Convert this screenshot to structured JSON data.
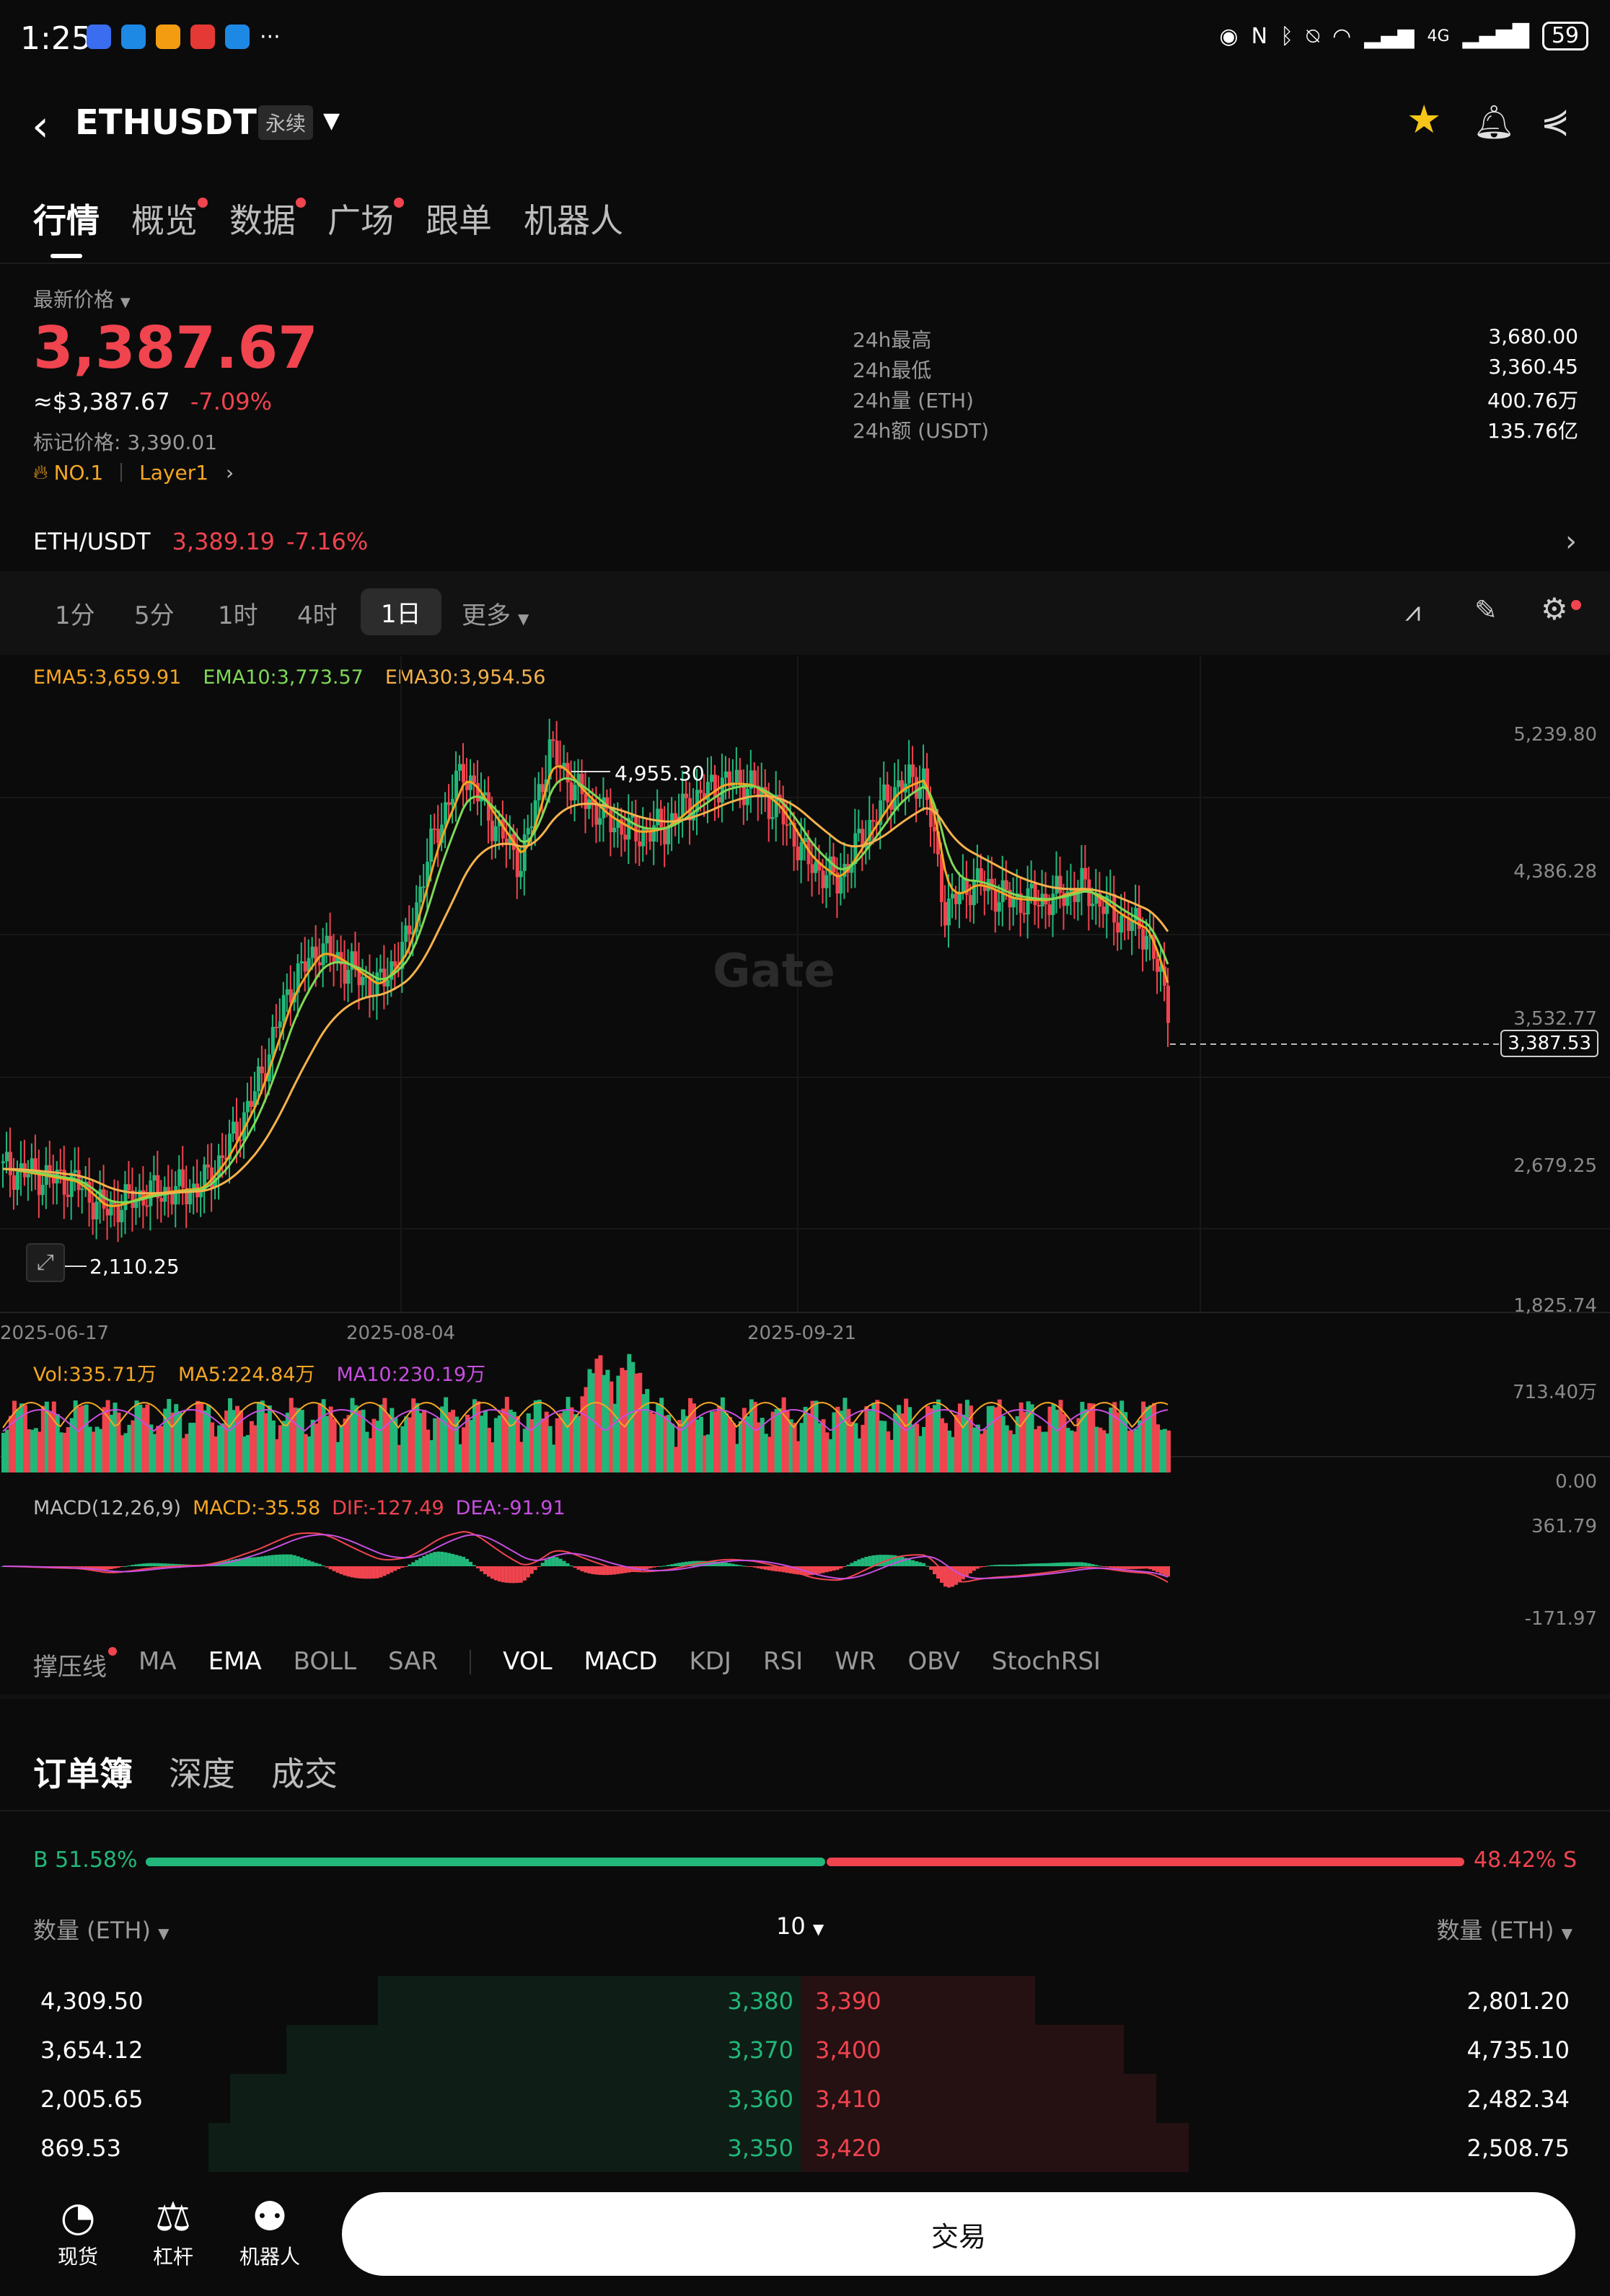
{
  "status": {
    "time": "1:25",
    "more": "···",
    "network": "4G",
    "battery": "59",
    "apps": [
      "#3a6df0",
      "#1e88e5",
      "#f39c12",
      "#e53935",
      "#1e88e5"
    ]
  },
  "header": {
    "symbol": "ETHUSDT",
    "tag": "永续"
  },
  "tabs": [
    {
      "label": "行情",
      "active": true,
      "dot": false
    },
    {
      "label": "概览",
      "active": false,
      "dot": true
    },
    {
      "label": "数据",
      "active": false,
      "dot": true
    },
    {
      "label": "广场",
      "active": false,
      "dot": true
    },
    {
      "label": "跟单",
      "active": false,
      "dot": false
    },
    {
      "label": "机器人",
      "active": false,
      "dot": false
    }
  ],
  "price": {
    "label": "最新价格",
    "last": "3,387.67",
    "usd": "≈$3,387.67",
    "change": "-7.09%",
    "mark_label": "标记价格:",
    "mark": "3,390.01",
    "rank": "NO.1",
    "sector": "Layer1"
  },
  "stats": [
    {
      "label": "24h最高",
      "value": "3,680.00"
    },
    {
      "label": "24h最低",
      "value": "3,360.45"
    },
    {
      "label": "24h量 (ETH)",
      "value": "400.76万"
    },
    {
      "label": "24h额 (USDT)",
      "value": "135.76亿"
    }
  ],
  "spot": {
    "pair": "ETH/USDT",
    "price": "3,389.19",
    "change": "-7.16%"
  },
  "timeframes": [
    "1分",
    "5分",
    "1时",
    "4时",
    "1日",
    "更多"
  ],
  "active_timeframe": "1日",
  "chart": {
    "ema5": "EMA5:3,659.91",
    "ema10": "EMA10:3,773.57",
    "ema30": "EMA30:3,954.56",
    "y_ticks": [
      "5,239.80",
      "4,386.28",
      "3,532.77",
      "2,679.25",
      "1,825.74"
    ],
    "x_ticks": [
      "2025-06-17",
      "2025-08-04",
      "2025-09-21"
    ],
    "high_label": "4,955.30",
    "low_label": "2,110.25",
    "current": "3,387.53",
    "watermark": "Gate",
    "colors": {
      "up": "#22b77a",
      "down": "#f0444f",
      "ema5": "#f5a623",
      "ema10": "#7ed957",
      "ema30": "#f5b14c"
    }
  },
  "volume": {
    "vol": "Vol:335.71万",
    "ma5": "MA5:224.84万",
    "ma10": "MA10:230.19万",
    "top": "713.40万",
    "bottom": "0.00"
  },
  "macd": {
    "title": "MACD(12,26,9)",
    "macd": "MACD:-35.58",
    "dif": "DIF:-127.49",
    "dea": "DEA:-91.91",
    "top": "361.79",
    "bottom": "-171.97"
  },
  "indicators": {
    "main": [
      "撑压线",
      "MA",
      "EMA",
      "BOLL",
      "SAR"
    ],
    "sub": [
      "VOL",
      "MACD",
      "KDJ",
      "RSI",
      "WR",
      "OBV",
      "StochRSI"
    ]
  },
  "orderbook": {
    "tabs": [
      "订单簿",
      "深度",
      "成交"
    ],
    "buy_ratio": "B 51.58%",
    "sell_ratio": "48.42% S",
    "left_head": "数量 (ETH)",
    "mid_head": "10",
    "right_head": "数量 (ETH)",
    "rows": [
      {
        "bid_qty": "4,309.50",
        "bid": "3,380",
        "ask": "3,390",
        "ask_qty": "2,801.20",
        "bid_depth": 0.6,
        "ask_depth": 0.17
      },
      {
        "bid_qty": "3,654.12",
        "bid": "3,370",
        "ask": "3,400",
        "ask_qty": "4,735.10",
        "bid_depth": 0.73,
        "ask_depth": 0.28
      },
      {
        "bid_qty": "2,005.65",
        "bid": "3,360",
        "ask": "3,410",
        "ask_qty": "2,482.34",
        "bid_depth": 0.81,
        "ask_depth": 0.32
      },
      {
        "bid_qty": "869.53",
        "bid": "3,350",
        "ask": "3,420",
        "ask_qty": "2,508.75",
        "bid_depth": 0.84,
        "ask_depth": 0.36
      }
    ]
  },
  "bottom_nav": [
    {
      "label": "现货",
      "icon": "spot-icon"
    },
    {
      "label": "杠杆",
      "icon": "margin-icon"
    },
    {
      "label": "机器人",
      "icon": "robot-icon"
    }
  ],
  "trade_label": "交易"
}
